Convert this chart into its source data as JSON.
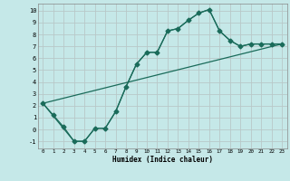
{
  "xlabel": "Humidex (Indice chaleur)",
  "background_color": "#c5e8e8",
  "grid_color": "#b8c8c8",
  "line_color": "#1a6b5a",
  "xlim": [
    -0.5,
    23.5
  ],
  "ylim": [
    -1.6,
    10.6
  ],
  "xticks": [
    0,
    1,
    2,
    3,
    4,
    5,
    6,
    7,
    8,
    9,
    10,
    11,
    12,
    13,
    14,
    15,
    16,
    17,
    18,
    19,
    20,
    21,
    22,
    23
  ],
  "yticks": [
    -1,
    0,
    1,
    2,
    3,
    4,
    5,
    6,
    7,
    8,
    9,
    10
  ],
  "curve1_x": [
    0,
    1,
    2,
    3,
    4,
    5,
    6,
    7,
    8,
    9,
    10,
    11,
    12,
    13,
    14,
    15,
    16,
    17,
    18,
    19,
    20,
    21,
    22,
    23
  ],
  "curve1_y": [
    2.2,
    1.2,
    0.2,
    -1.0,
    -1.0,
    0.1,
    0.1,
    1.5,
    3.6,
    5.5,
    6.5,
    6.5,
    8.3,
    8.5,
    9.2,
    9.8,
    10.1,
    8.3,
    7.5,
    7.0,
    7.2,
    7.2,
    7.2,
    7.2
  ],
  "curve2_x": [
    0,
    3,
    4,
    5,
    6,
    7,
    8,
    9,
    10,
    11,
    12,
    13,
    14,
    15,
    16,
    17,
    18,
    19,
    20,
    21,
    22,
    23
  ],
  "curve2_y": [
    2.2,
    -1.0,
    -1.0,
    0.1,
    0.1,
    1.5,
    3.6,
    5.5,
    6.5,
    6.5,
    8.3,
    8.5,
    9.2,
    9.8,
    10.1,
    8.3,
    7.5,
    7.0,
    7.2,
    7.2,
    7.2,
    7.2
  ],
  "curve3_x": [
    0,
    23
  ],
  "curve3_y": [
    2.2,
    7.2
  ],
  "markersize": 2.5,
  "linewidth": 0.9
}
